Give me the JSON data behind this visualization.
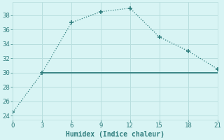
{
  "xlabel": "Humidex (Indice chaleur)",
  "line1_x": [
    0,
    3,
    6,
    9,
    12,
    15,
    18,
    21
  ],
  "line1_y": [
    24.5,
    30.0,
    37.0,
    38.5,
    39.0,
    35.0,
    33.0,
    30.5
  ],
  "line2_x": [
    3,
    9,
    18,
    21
  ],
  "line2_y": [
    30,
    30,
    30,
    30
  ],
  "line_color": "#2e7d7d",
  "line2_color": "#2e7d7d",
  "bg_color": "#d8f4f4",
  "grid_color": "#b8dede",
  "text_color": "#2e7d7d",
  "xlim": [
    0,
    21
  ],
  "ylim": [
    23.5,
    39.8
  ],
  "xticks": [
    0,
    3,
    6,
    9,
    12,
    15,
    18,
    21
  ],
  "yticks": [
    24,
    26,
    28,
    30,
    32,
    34,
    36,
    38
  ]
}
